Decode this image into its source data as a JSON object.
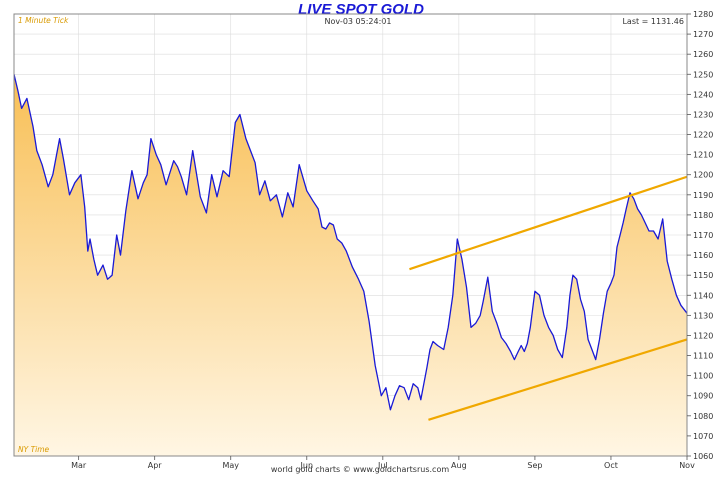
{
  "header": {
    "timestamp": "Nov-03  05:24:01",
    "last": "Last = 1131.46"
  },
  "labels": {
    "corner_top": "1 Minute Tick",
    "corner_bottom": "NY Time",
    "footer": "world gold charts © www.goldchartsrus.com"
  },
  "colors": {
    "line": "#1a1ad6",
    "fill_top": "#f8bf55",
    "fill_bottom": "#fff6e4",
    "trend": "#f0a800",
    "grid": "#dcdcdc"
  },
  "chart_data": {
    "type": "line",
    "title": "LIVE SPOT GOLD",
    "xlabel": "",
    "ylabel": "",
    "x_ticks": [
      "Mar",
      "Apr",
      "May",
      "Jun",
      "Jul",
      "Aug",
      "Sep",
      "Oct",
      "Nov"
    ],
    "x_tick_pos": [
      1.3,
      2.3,
      3.3,
      4.3,
      5.3,
      6.3,
      7.3,
      8.3,
      9.3
    ],
    "xlim": [
      0.45,
      9.3
    ],
    "ylim": [
      1060,
      1280
    ],
    "y_ticks": [
      1060,
      1070,
      1080,
      1090,
      1100,
      1110,
      1120,
      1130,
      1140,
      1150,
      1160,
      1170,
      1180,
      1190,
      1200,
      1210,
      1220,
      1230,
      1240,
      1250,
      1260,
      1270,
      1280
    ],
    "grid": true,
    "series": [
      {
        "x": [
          0.45,
          0.5,
          0.55,
          0.62,
          0.7,
          0.75,
          0.82,
          0.9,
          0.96,
          1.05,
          1.1,
          1.18,
          1.25,
          1.33,
          1.38,
          1.42,
          1.45,
          1.5,
          1.55,
          1.62,
          1.68,
          1.74,
          1.8,
          1.85,
          1.92,
          2.0,
          2.08,
          2.15,
          2.2,
          2.25,
          2.32,
          2.38,
          2.45,
          2.55,
          2.6,
          2.65,
          2.72,
          2.8,
          2.9,
          2.98,
          3.05,
          3.12,
          3.2,
          3.28,
          3.36,
          3.42,
          3.5,
          3.56,
          3.62,
          3.68,
          3.75,
          3.82,
          3.9,
          3.98,
          4.05,
          4.12,
          4.2,
          4.3,
          4.38,
          4.45,
          4.5,
          4.55,
          4.6,
          4.65,
          4.7,
          4.76,
          4.82,
          4.9,
          4.98,
          5.05,
          5.12,
          5.2,
          5.28,
          5.34,
          5.4,
          5.46,
          5.52,
          5.58,
          5.64,
          5.7,
          5.76,
          5.8,
          5.85,
          5.88,
          5.92,
          5.96,
          6.02,
          6.1,
          6.16,
          6.22,
          6.28,
          6.34,
          6.4,
          6.46,
          6.52,
          6.58,
          6.62,
          6.68,
          6.74,
          6.8,
          6.86,
          6.92,
          6.98,
          7.03,
          7.08,
          7.12,
          7.16,
          7.2,
          7.24,
          7.3,
          7.36,
          7.42,
          7.48,
          7.54,
          7.6,
          7.66,
          7.72,
          7.76,
          7.8,
          7.85,
          7.9,
          7.95,
          8.0,
          8.05,
          8.1,
          8.15,
          8.2,
          8.25,
          8.3,
          8.34,
          8.38,
          8.42,
          8.46,
          8.5,
          8.55,
          8.6,
          8.65,
          8.7,
          8.75,
          8.8,
          8.86,
          8.92,
          8.98,
          9.04,
          9.1,
          9.16,
          9.22,
          9.28,
          9.3
        ],
        "y": [
          1250,
          1242,
          1233,
          1238,
          1224,
          1212,
          1205,
          1194,
          1200,
          1218,
          1208,
          1190,
          1196,
          1200,
          1184,
          1162,
          1168,
          1158,
          1150,
          1155,
          1148,
          1150,
          1170,
          1160,
          1182,
          1202,
          1188,
          1196,
          1200,
          1218,
          1210,
          1205,
          1195,
          1207,
          1204,
          1199,
          1190,
          1212,
          1189,
          1181,
          1200,
          1189,
          1202,
          1199,
          1226,
          1230,
          1218,
          1212,
          1206,
          1190,
          1197,
          1187,
          1190,
          1179,
          1191,
          1184,
          1205,
          1192,
          1187,
          1183,
          1174,
          1173,
          1176,
          1175,
          1168,
          1166,
          1162,
          1154,
          1148,
          1142,
          1127,
          1105,
          1090,
          1094,
          1083,
          1090,
          1095,
          1094,
          1088,
          1096,
          1094,
          1088,
          1098,
          1104,
          1113,
          1117,
          1115,
          1113,
          1124,
          1140,
          1168,
          1158,
          1144,
          1124,
          1126,
          1130,
          1137,
          1149,
          1132,
          1126,
          1119,
          1116,
          1112,
          1108,
          1112,
          1115,
          1112,
          1116,
          1124,
          1142,
          1140,
          1130,
          1124,
          1120,
          1113,
          1109,
          1124,
          1140,
          1150,
          1148,
          1138,
          1132,
          1118,
          1113,
          1108,
          1118,
          1131,
          1142,
          1146,
          1150,
          1164,
          1170,
          1176,
          1183,
          1191,
          1188,
          1183,
          1180,
          1176,
          1172,
          1172,
          1168,
          1178,
          1157,
          1148,
          1140,
          1135,
          1132,
          1131
        ]
      }
    ],
    "trendlines": [
      {
        "x": [
          5.65,
          9.3
        ],
        "y": [
          1153,
          1199
        ]
      },
      {
        "x": [
          5.9,
          9.3
        ],
        "y": [
          1078,
          1118
        ]
      }
    ]
  }
}
